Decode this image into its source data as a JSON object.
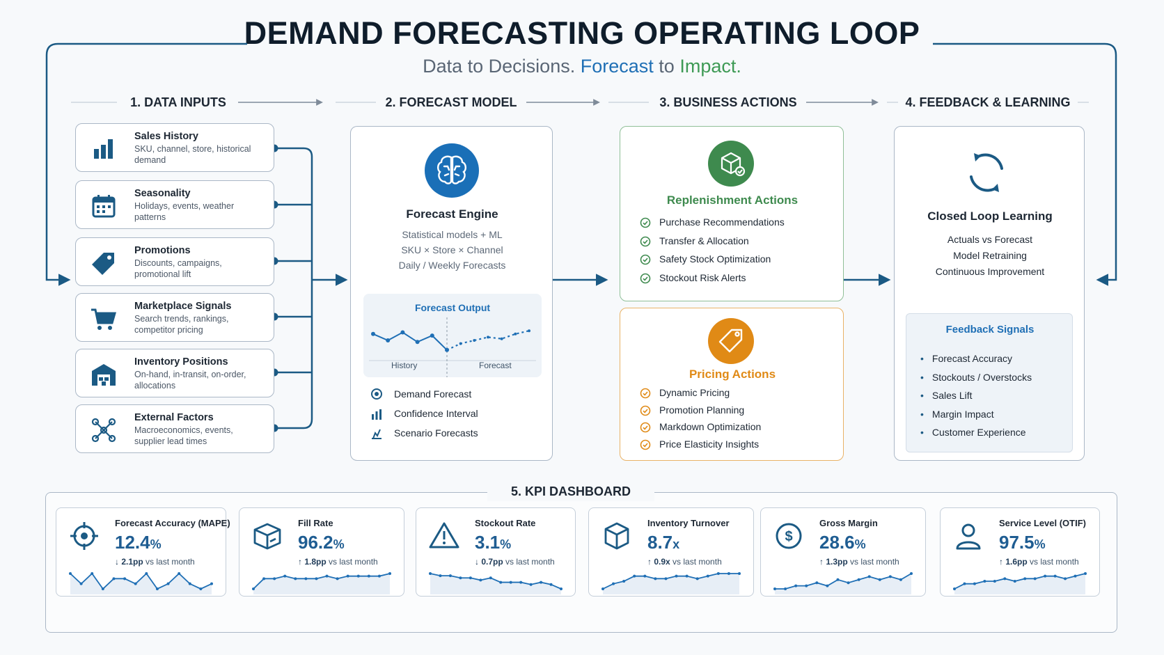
{
  "header": {
    "title": "DEMAND FORECASTING OPERATING LOOP",
    "subtitle_a": "Data to Decisions.",
    "subtitle_b": "Forecast",
    "subtitle_c": "to",
    "subtitle_d": "Impact."
  },
  "columns": {
    "c1": "1. DATA INPUTS",
    "c2": "2. FORECAST MODEL",
    "c3": "3. BUSINESS ACTIONS",
    "c4": "4. FEEDBACK & LEARNING"
  },
  "inputs": [
    {
      "title": "Sales History",
      "desc": "SKU, channel, store, historical demand",
      "icon": "bar-chart-icon"
    },
    {
      "title": "Seasonality",
      "desc": "Holidays, events, weather patterns",
      "icon": "calendar-icon"
    },
    {
      "title": "Promotions",
      "desc": "Discounts, campaigns, promotional lift",
      "icon": "tag-icon"
    },
    {
      "title": "Marketplace Signals",
      "desc": "Search trends, rankings, competitor pricing",
      "icon": "cart-icon"
    },
    {
      "title": "Inventory Positions",
      "desc": "On-hand, in-transit, on-order, allocations",
      "icon": "warehouse-icon"
    },
    {
      "title": "External Factors",
      "desc": "Macroeconomics, events, supplier lead times",
      "icon": "network-icon"
    }
  ],
  "model": {
    "title": "Forecast Engine",
    "lines": [
      "Statistical models + ML",
      "SKU × Store × Channel",
      "Daily / Weekly Forecasts"
    ],
    "output_title": "Forecast Output",
    "history_label": "History",
    "forecast_label": "Forecast",
    "history_values": [
      50,
      46,
      51,
      45,
      49,
      40
    ],
    "forecast_values": [
      40,
      44,
      46,
      48,
      47,
      50,
      52
    ],
    "items": [
      "Demand Forecast",
      "Confidence Interval",
      "Scenario Forecasts"
    ],
    "icon": "brain-icon"
  },
  "actions": {
    "replenishment": {
      "title": "Replenishment Actions",
      "items": [
        "Purchase Recommendations",
        "Transfer & Allocation",
        "Safety Stock Optimization",
        "Stockout Risk Alerts"
      ],
      "color": "#3e8a4e"
    },
    "pricing": {
      "title": "Pricing Actions",
      "items": [
        "Dynamic Pricing",
        "Promotion Planning",
        "Markdown Optimization",
        "Price Elasticity Insights"
      ],
      "color": "#e08a16"
    }
  },
  "feedback": {
    "title": "Closed Loop Learning",
    "lines": [
      "Actuals vs Forecast",
      "Model Retraining",
      "Continuous Improvement"
    ],
    "signals_title": "Feedback Signals",
    "signals": [
      "Forecast Accuracy",
      "Stockouts / Overstocks",
      "Sales Lift",
      "Margin Impact",
      "Customer Experience"
    ]
  },
  "kpi": {
    "title": "5. KPI DASHBOARD",
    "vs": "vs last month",
    "cards": [
      {
        "label": "Forecast Accuracy (MAPE)",
        "value": "12.4",
        "unit": "%",
        "dir": "down",
        "delta": "2.1pp",
        "icon": "crosshair-icon",
        "trend": [
          6,
          4,
          6,
          3,
          5,
          5,
          4,
          6,
          3,
          4,
          6,
          4,
          3,
          4
        ]
      },
      {
        "label": "Fill Rate",
        "value": "96.2",
        "unit": "%",
        "dir": "up",
        "delta": "1.8pp",
        "icon": "box-icon",
        "trend": [
          1,
          5,
          5,
          6,
          5,
          5,
          5,
          6,
          5,
          6,
          6,
          6,
          6,
          7
        ]
      },
      {
        "label": "Stockout Rate",
        "value": "3.1",
        "unit": "%",
        "dir": "down",
        "delta": "0.7pp",
        "icon": "warning-icon",
        "trend": [
          7,
          6,
          6,
          5,
          5,
          4,
          5,
          3,
          3,
          3,
          2,
          3,
          2,
          0
        ]
      },
      {
        "label": "Inventory Turnover",
        "value": "8.7",
        "unit": "x",
        "dir": "up",
        "delta": "0.9x",
        "icon": "cube-icon",
        "trend": [
          1,
          3,
          4,
          6,
          6,
          5,
          5,
          6,
          6,
          5,
          6,
          7,
          7,
          7
        ]
      },
      {
        "label": "Gross Margin",
        "value": "28.6",
        "unit": "%",
        "dir": "up",
        "delta": "1.3pp",
        "icon": "dollar-icon",
        "trend": [
          2,
          2,
          3,
          3,
          4,
          3,
          5,
          4,
          5,
          6,
          5,
          6,
          5,
          7
        ]
      },
      {
        "label": "Service Level (OTIF)",
        "value": "97.5",
        "unit": "%",
        "dir": "up",
        "delta": "1.6pp",
        "icon": "user-icon",
        "trend": [
          1,
          3,
          3,
          4,
          4,
          5,
          4,
          5,
          5,
          6,
          6,
          5,
          6,
          7
        ]
      }
    ]
  }
}
